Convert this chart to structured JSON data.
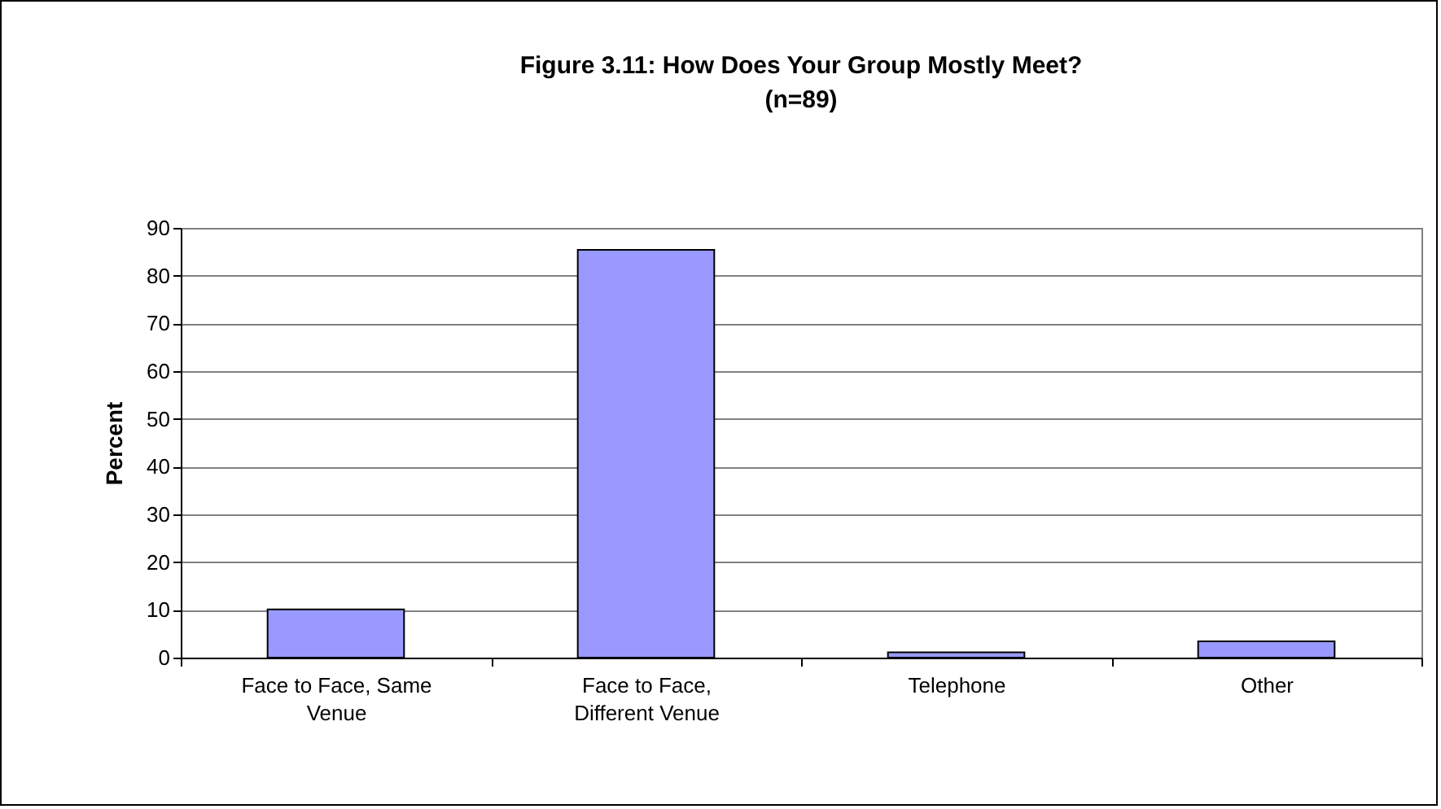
{
  "chart_data": {
    "type": "bar",
    "title": "Figure 3.11:  How Does Your Group Mostly Meet?",
    "subtitle": "(n=89)",
    "ylabel": "Percent",
    "categories": [
      "Face to Face, Same Venue",
      "Face to Face, Different Venue",
      "Telephone",
      "Other"
    ],
    "values": [
      10.1,
      85.4,
      1.1,
      3.4
    ],
    "color": "#9999ff",
    "ylim": [
      0,
      90
    ],
    "yticks": [
      0,
      10,
      20,
      30,
      40,
      50,
      60,
      70,
      80,
      90
    ],
    "grid": "y"
  }
}
